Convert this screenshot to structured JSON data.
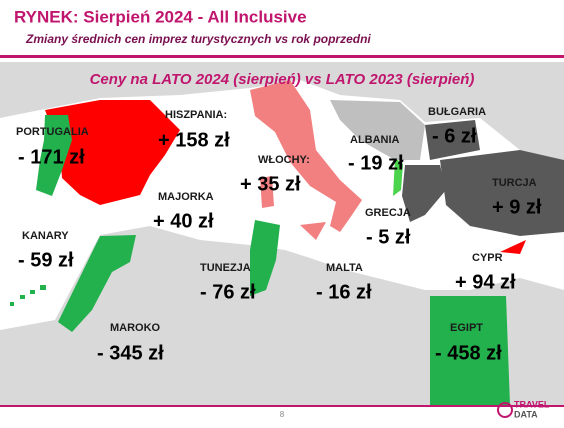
{
  "header": {
    "title": "RYNEK: Sierpień 2024 - All Inclusive",
    "subtitle": "Zmiany średnich cen imprez turystycznych vs rok poprzedni"
  },
  "map": {
    "title": "Ceny na LATO 2024 (sierpień) vs  LATO 2023 (sierpień)",
    "countries": [
      {
        "name": "PORTUGALIA",
        "change": "- 171 zł"
      },
      {
        "name": "HISZPANIA:",
        "change": "+ 158 zł"
      },
      {
        "name": "WŁOCHY:",
        "change": "+ 35 zł"
      },
      {
        "name": "ALBANIA",
        "change": "- 19 zł"
      },
      {
        "name": "BUŁGARIA",
        "change": "- 6 zł"
      },
      {
        "name": "TURCJA",
        "change": "+ 9 zł"
      },
      {
        "name": "GRECJA",
        "change": "- 5 zł"
      },
      {
        "name": "MAJORKA",
        "change": "+ 40 zł"
      },
      {
        "name": "KANARY",
        "change": "- 59 zł"
      },
      {
        "name": "TUNEZJA",
        "change": "- 76 zł"
      },
      {
        "name": "MALTA",
        "change": "- 16 zł"
      },
      {
        "name": "CYPR",
        "change": "+ 94 zł"
      },
      {
        "name": "MAROKO",
        "change": "- 345 zł"
      },
      {
        "name": "EGIPT",
        "change": "- 458 zł"
      }
    ]
  },
  "footer": {
    "page": "8",
    "logo_top": "TRAVEL",
    "logo_bottom": "DATA"
  }
}
